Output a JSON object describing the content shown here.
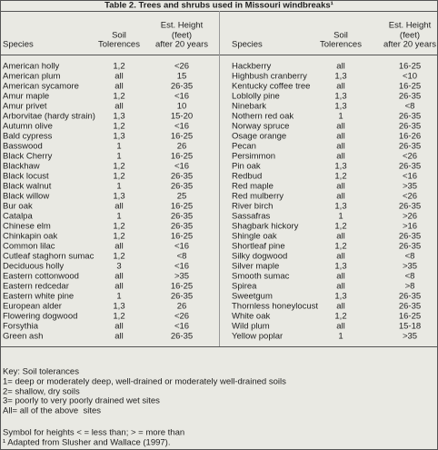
{
  "table": {
    "title": "Table 2. Trees and shrubs used in Missouri windbreaks¹",
    "headers": [
      [
        "Species"
      ],
      [
        "Soil",
        "Tolerences"
      ],
      [
        "Est. Height",
        "(feet)",
        "after 20 years"
      ]
    ],
    "left_rows": [
      [
        "American holly",
        "1,2",
        "<26"
      ],
      [
        "American plum",
        "all",
        "15"
      ],
      [
        "American sycamore",
        "all",
        "26-35"
      ],
      [
        "Amur maple",
        "1,2",
        "<16"
      ],
      [
        "Amur privet",
        "all",
        "10"
      ],
      [
        "Arborvitae (hardy strain)",
        "1,3",
        "15-20"
      ],
      [
        "Autumn olive",
        "1,2",
        "<16"
      ],
      [
        "Bald cypress",
        "1,3",
        "16-25"
      ],
      [
        "Basswood",
        "1",
        "26"
      ],
      [
        "Black Cherry",
        "1",
        "16-25"
      ],
      [
        "Blackhaw",
        "1,2",
        "<16"
      ],
      [
        "Black locust",
        "1,2",
        "26-35"
      ],
      [
        "Black walnut",
        "1",
        "26-35"
      ],
      [
        "Black willow",
        "1,3",
        "25"
      ],
      [
        "Bur oak",
        "all",
        "16-25"
      ],
      [
        "Catalpa",
        "1",
        "26-35"
      ],
      [
        "Chinese elm",
        "1,2",
        "26-35"
      ],
      [
        "Chinkapin oak",
        "1,2",
        "16-25"
      ],
      [
        "Common lilac",
        "all",
        "<16"
      ],
      [
        "Cutleaf staghorn sumac",
        "1,2",
        "<8"
      ],
      [
        "Deciduous holly",
        "3",
        "<16"
      ],
      [
        "Eastern cottonwood",
        "all",
        ">35"
      ],
      [
        "Eastern redcedar",
        "all",
        "16-25"
      ],
      [
        "Eastern white pine",
        "1",
        "26-35"
      ],
      [
        "European alder",
        "1,3",
        "26"
      ],
      [
        "Flowering dogwood",
        "1,2",
        "<26"
      ],
      [
        "Forsythia",
        "all",
        "<16"
      ],
      [
        "Green ash",
        "all",
        "26-35"
      ]
    ],
    "right_rows": [
      [
        "Hackberry",
        "all",
        "16-25"
      ],
      [
        "Highbush cranberry",
        "1,3",
        "<10"
      ],
      [
        "Kentucky coffee tree",
        "all",
        "16-25"
      ],
      [
        "Loblolly pine",
        "1,3",
        "26-35"
      ],
      [
        "Ninebark",
        "1,3",
        "<8"
      ],
      [
        "Nothern red oak",
        "1",
        "26-35"
      ],
      [
        "Norway spruce",
        "all",
        "26-35"
      ],
      [
        "Osage orange",
        "all",
        "16-26"
      ],
      [
        "Pecan",
        "all",
        "26-35"
      ],
      [
        "Persimmon",
        "all",
        "<26"
      ],
      [
        "Pin oak",
        "1,3",
        "26-35"
      ],
      [
        "Redbud",
        "1,2",
        "<16"
      ],
      [
        "Red maple",
        "all",
        ">35"
      ],
      [
        "Red mulberry",
        "all",
        "<26"
      ],
      [
        "River birch",
        "1,3",
        "26-35"
      ],
      [
        "Sassafras",
        "1",
        ">26"
      ],
      [
        "Shagbark hickory",
        "1,2",
        ">16"
      ],
      [
        "Shingle oak",
        "all",
        "26-35"
      ],
      [
        "Shortleaf pine",
        "1,2",
        "26-35"
      ],
      [
        "Silky dogwood",
        "all",
        "<8"
      ],
      [
        "Silver maple",
        "1,3",
        ">35"
      ],
      [
        "Smooth sumac",
        "all",
        "<8"
      ],
      [
        "Spirea",
        "all",
        ">8"
      ],
      [
        "Sweetgum",
        "1,3",
        "26-35"
      ],
      [
        "Thornless honeylocust",
        "all",
        "26-35"
      ],
      [
        "White oak",
        "1,2",
        "16-25"
      ],
      [
        "Wild plum",
        "all",
        "15-18"
      ],
      [
        "Yellow poplar",
        "1",
        ">35"
      ]
    ]
  },
  "footer": {
    "key_title": "Key: Soil tolerances",
    "key_lines": [
      "1= deep or moderately deep, well-drained or moderately well-drained soils",
      "2= shallow, dry soils",
      "3= poorly to very poorly drained wet sites",
      "All= all of the above  sites"
    ],
    "symbols": "Symbol for heights < = less than; > = more than",
    "source": "¹ Adapted from Slusher and Wallace (1997)."
  }
}
